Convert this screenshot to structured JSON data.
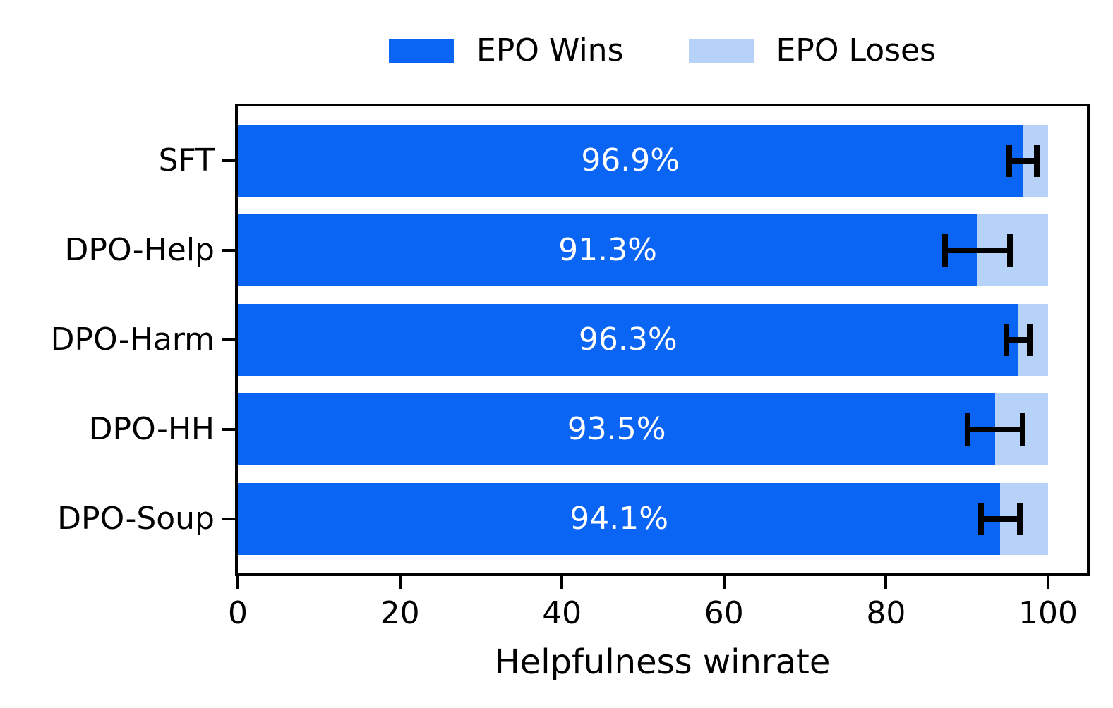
{
  "figure": {
    "background": "#ffffff"
  },
  "legend": {
    "entries": [
      {
        "label": "EPO Wins",
        "color": "#0A64F4"
      },
      {
        "label": "EPO Loses",
        "color": "#B7D2F8"
      }
    ]
  },
  "chart_data": {
    "type": "bar",
    "orientation": "horizontal",
    "title": "",
    "xlabel": "Helpfulness winrate",
    "ylabel": "",
    "xlim": [
      0,
      104.8
    ],
    "xticks": [
      0,
      20,
      40,
      60,
      80,
      100
    ],
    "grid": false,
    "legend_position": "top-center",
    "categories": [
      "SFT",
      "DPO-Help",
      "DPO-Harm",
      "DPO-HH",
      "DPO-Soup"
    ],
    "series": [
      {
        "name": "EPO Wins",
        "color": "#0A64F4",
        "values": [
          96.9,
          91.3,
          96.3,
          93.5,
          94.1
        ]
      },
      {
        "name": "EPO Loses",
        "color": "#B7D2F8",
        "values": [
          3.1,
          8.7,
          3.7,
          6.5,
          5.9
        ]
      }
    ],
    "bar_labels": [
      "96.9%",
      "91.3%",
      "96.3%",
      "93.5%",
      "94.1%"
    ],
    "error_bars": {
      "centers": [
        96.9,
        91.3,
        96.3,
        93.5,
        94.1
      ],
      "plus_minus": [
        1.7,
        4.0,
        1.4,
        3.4,
        2.4
      ],
      "color": "#000000"
    }
  }
}
